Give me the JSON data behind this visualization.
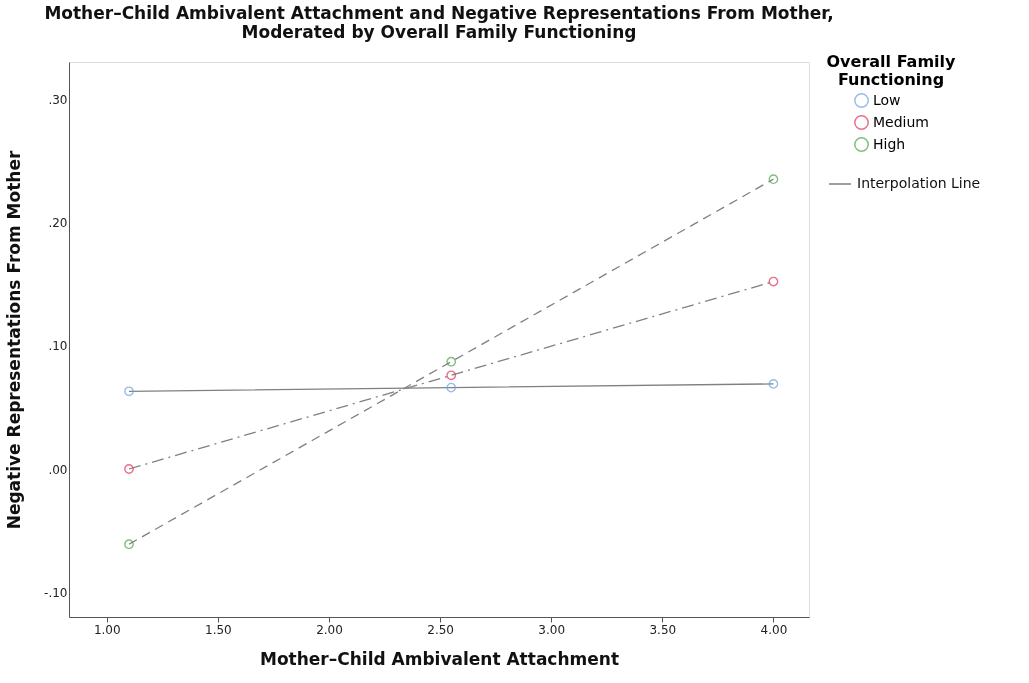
{
  "chart_data": {
    "type": "line",
    "title": "Mother–Child Ambivalent Attachment and Negative Representations From Mother,\nModerated by Overall Family Functioning",
    "xlabel": "Mother–Child Ambivalent Attachment",
    "ylabel": "Negative Representations From Mother",
    "legend_title": "Overall Family Functioning",
    "annotations": [
      "Interpolation Line"
    ],
    "x": [
      1.1,
      2.55,
      4.0
    ],
    "series": [
      {
        "name": "Low",
        "color": "#6fa0e0",
        "line_style": "solid",
        "values": [
          0.063,
          0.066,
          0.069
        ]
      },
      {
        "name": "Medium",
        "color": "#e0345a",
        "line_style": "dashdot",
        "values": [
          0.0,
          0.076,
          0.152
        ]
      },
      {
        "name": "High",
        "color": "#4aa54a",
        "line_style": "dashed",
        "values": [
          -0.061,
          0.087,
          0.235
        ]
      }
    ],
    "xlim": [
      0.83,
      4.16
    ],
    "ylim": [
      -0.12,
      0.33
    ],
    "xticks": [
      {
        "value": 1,
        "label": "1.00"
      },
      {
        "value": 1.5,
        "label": "1.50"
      },
      {
        "value": 2,
        "label": "2.00"
      },
      {
        "value": 2.5,
        "label": "2.50"
      },
      {
        "value": 3,
        "label": "3.00"
      },
      {
        "value": 3.5,
        "label": "3.50"
      },
      {
        "value": 4,
        "label": "4.00"
      }
    ],
    "yticks": [
      {
        "value": -0.1,
        "label": "-.10"
      },
      {
        "value": 0,
        "label": ".00"
      },
      {
        "value": 0.1,
        "label": ".10"
      },
      {
        "value": 0.2,
        "label": ".20"
      },
      {
        "value": 0.3,
        "label": ".30"
      }
    ],
    "marker": "circle",
    "grid": false,
    "legend": "top right"
  }
}
